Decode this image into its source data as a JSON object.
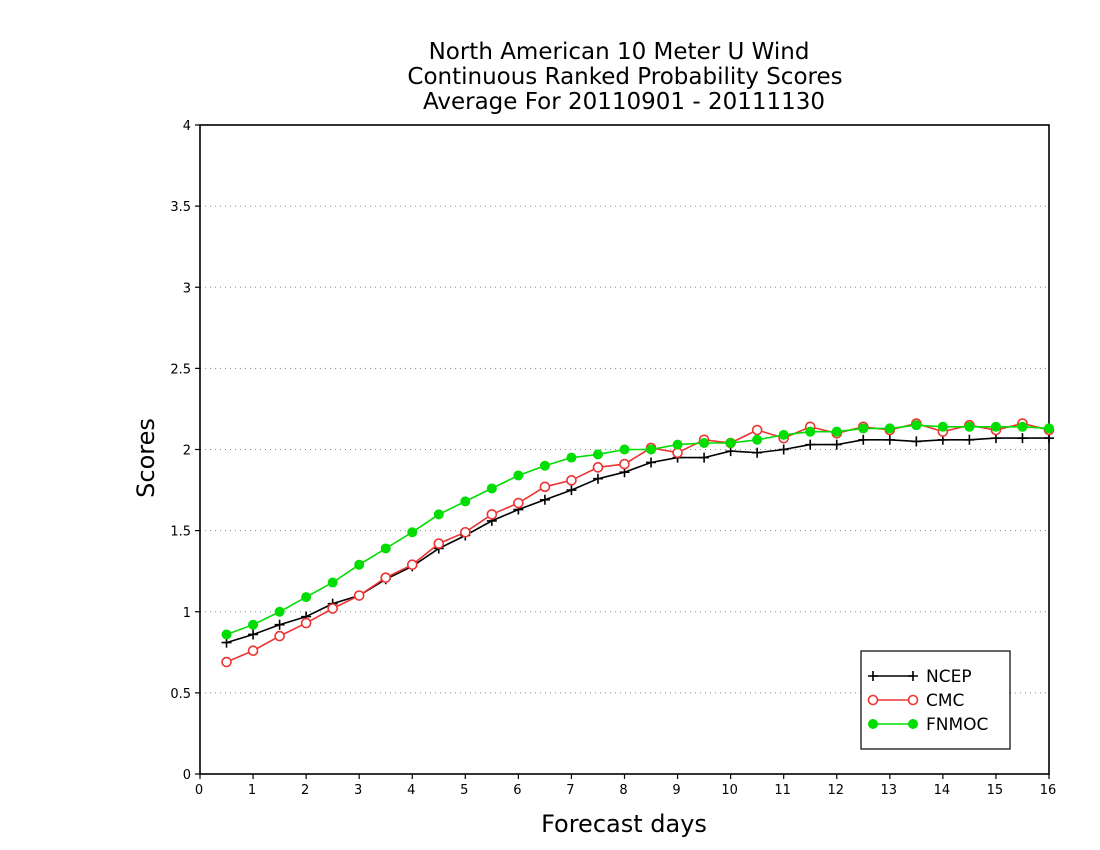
{
  "chart_data": {
    "type": "line",
    "title_lines": [
      "North American 10 Meter U Wind",
      "Continuous Ranked Probability Scores",
      "Average For 20110901 - 20111130"
    ],
    "xlabel": "Forecast days",
    "ylabel": "Scores",
    "xlim": [
      0,
      16
    ],
    "ylim": [
      0,
      4
    ],
    "x_ticks": [
      "0",
      "1",
      "2",
      "3",
      "4",
      "5",
      "6",
      "7",
      "8",
      "9",
      "10",
      "11",
      "12",
      "13",
      "14",
      "15",
      "16"
    ],
    "y_ticks": [
      "0",
      "0.5",
      "1",
      "1.5",
      "2",
      "2.5",
      "3",
      "3.5",
      "4"
    ],
    "grid": "horizontal dotted",
    "legend_position": "bottom-right",
    "x": [
      0.5,
      1,
      1.5,
      2,
      2.5,
      3,
      3.5,
      4,
      4.5,
      5,
      5.5,
      6,
      6.5,
      7,
      7.5,
      8,
      8.5,
      9,
      9.5,
      10,
      10.5,
      11,
      11.5,
      12,
      12.5,
      13,
      13.5,
      14,
      14.5,
      15,
      15.5,
      16
    ],
    "series": [
      {
        "name": "NCEP",
        "color": "#000000",
        "marker": "plus",
        "values": [
          0.81,
          0.86,
          0.92,
          0.97,
          1.05,
          1.1,
          1.2,
          1.28,
          1.39,
          1.47,
          1.56,
          1.63,
          1.69,
          1.75,
          1.82,
          1.86,
          1.92,
          1.95,
          1.95,
          1.99,
          1.98,
          2.0,
          2.03,
          2.03,
          2.06,
          2.06,
          2.05,
          2.06,
          2.06,
          2.07,
          2.07,
          2.07
        ]
      },
      {
        "name": "CMC",
        "color": "#ee3333",
        "marker": "open-circle",
        "values": [
          0.69,
          0.76,
          0.85,
          0.93,
          1.02,
          1.1,
          1.21,
          1.29,
          1.42,
          1.49,
          1.6,
          1.67,
          1.77,
          1.81,
          1.89,
          1.91,
          2.01,
          1.98,
          2.06,
          2.04,
          2.12,
          2.07,
          2.14,
          2.1,
          2.14,
          2.12,
          2.16,
          2.11,
          2.15,
          2.12,
          2.16,
          2.12
        ]
      },
      {
        "name": "FNMOC",
        "color": "#00dd00",
        "marker": "filled-circle",
        "values": [
          0.86,
          0.92,
          1.0,
          1.09,
          1.18,
          1.29,
          1.39,
          1.49,
          1.6,
          1.68,
          1.76,
          1.84,
          1.9,
          1.95,
          1.97,
          2.0,
          2.0,
          2.03,
          2.04,
          2.04,
          2.06,
          2.09,
          2.11,
          2.11,
          2.13,
          2.13,
          2.15,
          2.14,
          2.14,
          2.14,
          2.14,
          2.13
        ]
      }
    ]
  }
}
